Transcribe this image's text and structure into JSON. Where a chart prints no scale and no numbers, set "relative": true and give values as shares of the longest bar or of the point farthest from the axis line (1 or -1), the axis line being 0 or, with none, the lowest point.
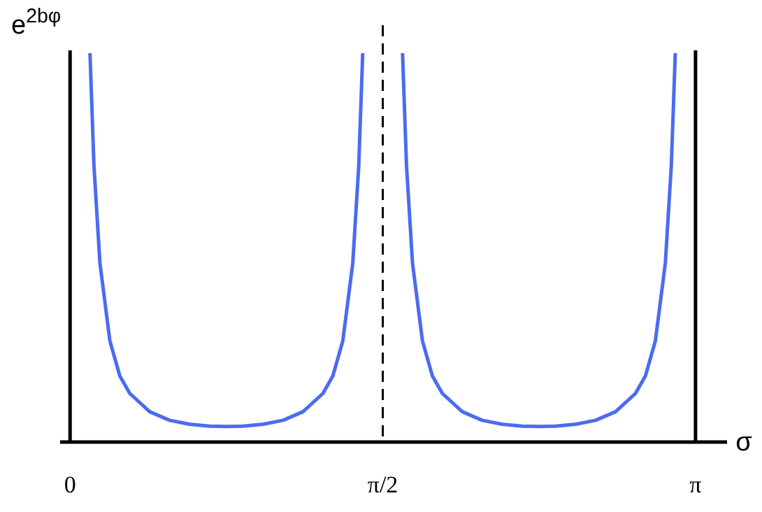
{
  "chart_data": {
    "type": "line",
    "relative": true,
    "ylabel": "e$^{2bφ}$",
    "xlabel": "σ",
    "xlim": [
      -0.05,
      3.3
    ],
    "xticks": [
      {
        "value": 0,
        "label": "0"
      },
      {
        "value": 1.5708,
        "label": "π/2"
      },
      {
        "value": 3.1416,
        "label": "π"
      }
    ],
    "ref_lines": [
      {
        "axis": "x",
        "value": 1.5708,
        "line_style": "dashed",
        "color": "#000000"
      },
      {
        "axis": "x",
        "value": 3.1416,
        "line_style": "solid",
        "color": "#000000"
      }
    ],
    "series": [
      {
        "color": "#4a6cf0",
        "x": [
          0.1,
          0.12,
          0.15,
          0.2,
          0.25,
          0.3,
          0.4,
          0.5,
          0.6,
          0.7,
          0.785,
          0.87,
          0.97,
          1.07,
          1.17,
          1.27,
          1.32,
          1.37,
          1.42,
          1.45,
          1.47,
          1.571,
          1.67,
          1.69,
          1.72,
          1.77,
          1.82,
          1.87,
          1.97,
          2.07,
          2.17,
          2.27,
          2.356,
          2.44,
          2.54,
          2.64,
          2.74,
          2.84,
          2.89,
          2.94,
          2.99,
          3.02,
          3.04
        ],
        "values": [
          1.0,
          0.71,
          0.46,
          0.26,
          0.17,
          0.125,
          0.078,
          0.056,
          0.046,
          0.041,
          0.04,
          0.041,
          0.046,
          0.056,
          0.078,
          0.125,
          0.17,
          0.26,
          0.46,
          0.71,
          1.0,
          null,
          1.0,
          0.71,
          0.46,
          0.26,
          0.17,
          0.125,
          0.078,
          0.056,
          0.046,
          0.041,
          0.04,
          0.041,
          0.046,
          0.056,
          0.078,
          0.125,
          0.17,
          0.26,
          0.46,
          0.71,
          1.0
        ]
      }
    ]
  }
}
